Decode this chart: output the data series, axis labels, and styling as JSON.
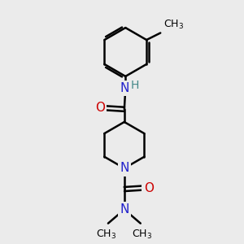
{
  "bg_color": "#ebebeb",
  "bond_color": "#000000",
  "bond_width": 1.8,
  "atom_colors": {
    "N": "#2222cc",
    "O": "#cc0000",
    "H": "#448888",
    "C": "#000000"
  },
  "font_size": 11,
  "fig_size": [
    3.0,
    3.0
  ],
  "dpi": 100
}
